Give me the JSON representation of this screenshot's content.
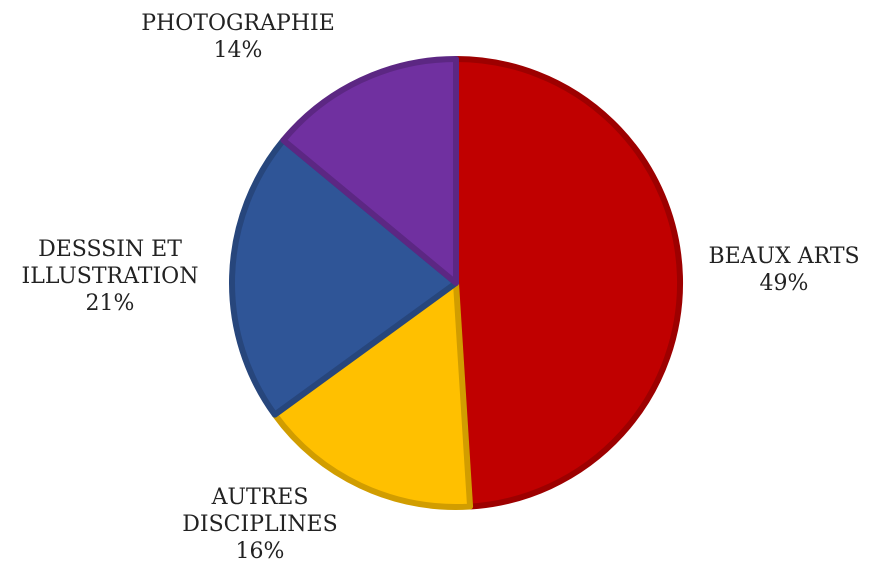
{
  "chart_data": {
    "type": "pie",
    "slices": [
      {
        "label_lines": [
          "BEAUX ARTS"
        ],
        "value": 49,
        "value_label": "49%",
        "color": "#C00000"
      },
      {
        "label_lines": [
          "AUTRES",
          "DISCIPLINES"
        ],
        "value": 16,
        "value_label": "16%",
        "color": "#FFC000"
      },
      {
        "label_lines": [
          "DESSSIN ET",
          "ILLUSTRATION"
        ],
        "value": 21,
        "value_label": "21%",
        "color": "#2F5597"
      },
      {
        "label_lines": [
          "PHOTOGRAPHIE"
        ],
        "value": 14,
        "value_label": "14%",
        "color": "#7030A0"
      }
    ]
  }
}
